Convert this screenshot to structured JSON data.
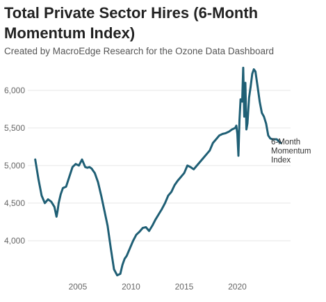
{
  "title": "Total Private Sector Hires (6-Month Momentum Index)",
  "subtitle": "Created by MacroEdge Research for the Ozone Data Dashboard",
  "chart_data": {
    "type": "line",
    "title": "Total Private Sector Hires (6-Month Momentum Index)",
    "subtitle": "Created by MacroEdge Research for the Ozone Data Dashboard",
    "xlabel": "",
    "ylabel": "",
    "xlim": [
      2000.3,
      2025.0
    ],
    "ylim": [
      3500,
      6350
    ],
    "x_ticks": [
      2005,
      2010,
      2015,
      2020
    ],
    "y_ticks": [
      4000,
      4500,
      5000,
      5500,
      6000
    ],
    "grid": "horizontal",
    "legend": "none",
    "color": "#1f5f75",
    "series": [
      {
        "name": "6-Month Momentum Index",
        "x": [
          2001.0,
          2001.3,
          2001.6,
          2001.9,
          2002.2,
          2002.5,
          2002.8,
          2003.0,
          2003.1,
          2003.2,
          2003.4,
          2003.6,
          2003.9,
          2004.2,
          2004.5,
          2004.8,
          2005.1,
          2005.4,
          2005.7,
          2005.9,
          2006.1,
          2006.3,
          2006.6,
          2006.9,
          2007.2,
          2007.5,
          2007.8,
          2008.1,
          2008.4,
          2008.7,
          2009.0,
          2009.2,
          2009.4,
          2009.6,
          2009.9,
          2010.2,
          2010.5,
          2010.8,
          2011.1,
          2011.4,
          2011.7,
          2012.0,
          2012.3,
          2012.6,
          2012.9,
          2013.2,
          2013.5,
          2013.8,
          2014.1,
          2014.4,
          2014.7,
          2015.0,
          2015.3,
          2015.6,
          2015.9,
          2016.2,
          2016.5,
          2016.8,
          2017.1,
          2017.4,
          2017.7,
          2018.0,
          2018.3,
          2018.6,
          2018.9,
          2019.2,
          2019.5,
          2019.8,
          2019.9,
          2020.0,
          2020.1,
          2020.2,
          2020.3,
          2020.45,
          2020.55,
          2020.65,
          2020.75,
          2020.85,
          2020.95,
          2021.1,
          2021.25,
          2021.4,
          2021.55,
          2021.7,
          2021.9,
          2022.1,
          2022.3,
          2022.5,
          2022.7,
          2022.9,
          2023.1,
          2023.3,
          2023.5,
          2023.7,
          2023.9,
          2024.1
        ],
        "y": [
          5080,
          4820,
          4600,
          4500,
          4550,
          4520,
          4450,
          4320,
          4400,
          4500,
          4620,
          4700,
          4720,
          4850,
          4980,
          5020,
          5000,
          5080,
          4980,
          4970,
          4980,
          4960,
          4900,
          4780,
          4600,
          4400,
          4200,
          3900,
          3620,
          3540,
          3560,
          3680,
          3760,
          3800,
          3900,
          4000,
          4080,
          4120,
          4170,
          4180,
          4130,
          4200,
          4280,
          4350,
          4420,
          4500,
          4600,
          4650,
          4740,
          4800,
          4850,
          4900,
          5000,
          4980,
          4950,
          5000,
          5050,
          5100,
          5150,
          5200,
          5300,
          5350,
          5400,
          5420,
          5430,
          5450,
          5480,
          5500,
          5530,
          5420,
          5130,
          5600,
          5880,
          5850,
          6300,
          5650,
          6100,
          5480,
          5560,
          5900,
          6050,
          6220,
          6280,
          6250,
          6050,
          5850,
          5700,
          5650,
          5560,
          5400,
          5360,
          5350,
          5350,
          5350,
          5320,
          5300
        ]
      }
    ]
  }
}
